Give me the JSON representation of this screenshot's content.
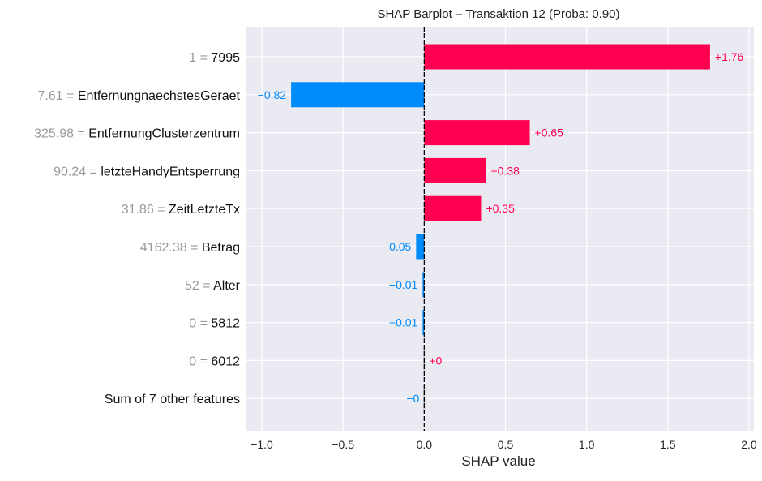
{
  "chart_data": {
    "type": "bar",
    "title": "SHAP Barplot – Transaktion 12 (Proba: 0.90)",
    "xlabel": "SHAP value",
    "ylabel": "",
    "xlim": [
      -1.1,
      2.03
    ],
    "xticks": [
      -1.0,
      -0.5,
      0.0,
      0.5,
      1.0,
      1.5,
      2.0
    ],
    "xtick_labels": [
      "−1.0",
      "−0.5",
      "0.0",
      "0.5",
      "1.0",
      "1.5",
      "2.0"
    ],
    "grid": true,
    "orientation": "horizontal",
    "colors": {
      "positive": "#ff0051",
      "negative": "#008bfb",
      "zero": "#c8c8c8",
      "feature_value": "#999999",
      "background": "#eaeaf2",
      "zero_line": "#000000"
    },
    "features": [
      {
        "value_text": "1",
        "name": "7995",
        "shap": 1.76,
        "label": "+1.76"
      },
      {
        "value_text": "7.61",
        "name": "EntfernungnaechstesGeraet",
        "shap": -0.82,
        "label": "−0.82"
      },
      {
        "value_text": "325.98",
        "name": "EntfernungClusterzentrum",
        "shap": 0.65,
        "label": "+0.65"
      },
      {
        "value_text": "90.24",
        "name": "letzteHandyEntsperrung",
        "shap": 0.38,
        "label": "+0.38"
      },
      {
        "value_text": "31.86",
        "name": "ZeitLetzteTx",
        "shap": 0.35,
        "label": "+0.35"
      },
      {
        "value_text": "4162.38",
        "name": "Betrag",
        "shap": -0.05,
        "label": "−0.05"
      },
      {
        "value_text": "52",
        "name": "Alter",
        "shap": -0.01,
        "label": "−0.01"
      },
      {
        "value_text": "0",
        "name": "5812",
        "shap": -0.01,
        "label": "−0.01"
      },
      {
        "value_text": "0",
        "name": "6012",
        "shap": 0.0,
        "label": "+0"
      },
      {
        "value_text": "",
        "name": "Sum of 7 other features",
        "shap": -0.0,
        "label": "−0"
      }
    ]
  }
}
